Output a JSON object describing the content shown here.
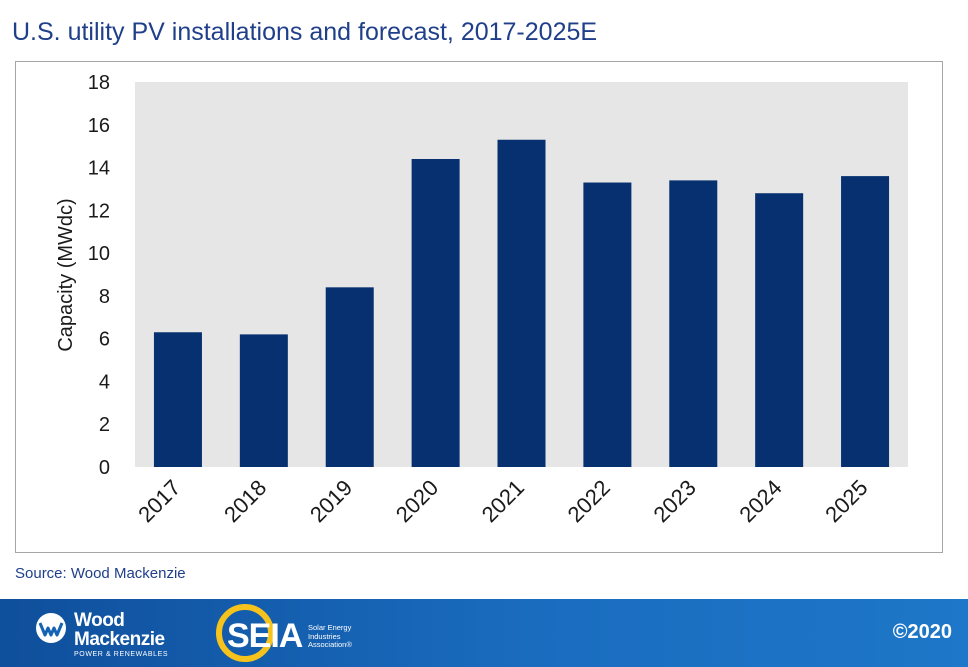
{
  "title": "U.S. utility PV installations and forecast, 2017-2025E",
  "source": "Source: Wood Mackenzie",
  "footer": {
    "wm_name_line1": "Wood",
    "wm_name_line2": "Mackenzie",
    "wm_tagline": "POWER & RENEWABLES",
    "seia_name": "SEIA",
    "seia_tagline": "Solar Energy Industries Association®",
    "copyright": "©2020"
  },
  "colors": {
    "bar": "#06306f",
    "plot_bg": "#e6e6e6",
    "title": "#1f3f8a",
    "footer": "#1563b3"
  },
  "chart_data": {
    "type": "bar",
    "title": "U.S. utility PV installations and forecast, 2017-2025E",
    "ylabel": "Capacity (MWdc)",
    "xlabel": "",
    "categories": [
      "2017",
      "2018",
      "2019",
      "2020",
      "2021",
      "2022",
      "2023",
      "2024",
      "2025"
    ],
    "values": [
      6.3,
      6.2,
      8.4,
      14.4,
      15.3,
      13.3,
      13.4,
      12.8,
      13.6
    ],
    "ylim": [
      0,
      18
    ],
    "yticks": [
      "0",
      "2",
      "4",
      "6",
      "8",
      "10",
      "12",
      "14",
      "16",
      "18"
    ],
    "grid": false,
    "legend": "none"
  }
}
